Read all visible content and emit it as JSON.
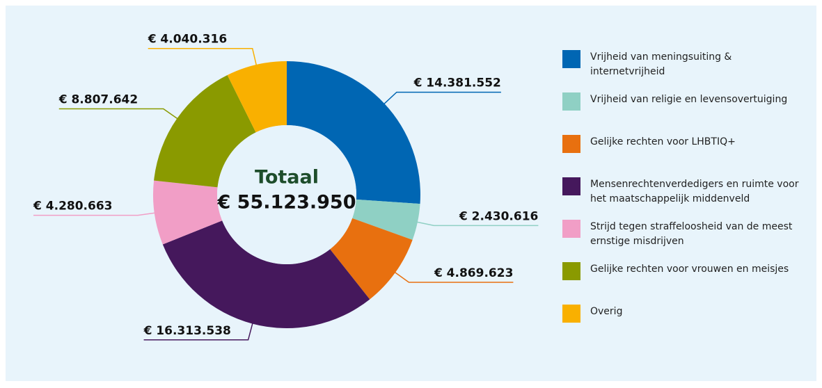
{
  "chart_data": {
    "type": "donut",
    "categories": [
      "Vrijheid van meningsuiting & internetvrijheid",
      "Vrijheid van religie en levensovertuiging",
      "Gelijke rechten voor LHBTIQ+",
      "Mensenrechtenverdedigers en ruimte voor het maatschappelijk middenveld",
      "Strijd tegen straffeloosheid van de meest ernstige misdrijven",
      "Gelijke rechten voor vrouwen en meisjes",
      "Overig"
    ],
    "values": [
      14381552,
      2430616,
      4869623,
      16313538,
      4280663,
      8807642,
      4040316
    ],
    "value_labels": [
      "€ 14.381.552",
      "€ 2.430.616",
      "€ 4.869.623",
      "€ 16.313.538",
      "€ 4.280.663",
      "€ 8.807.642",
      "€ 4.040.316"
    ],
    "colors": [
      "#0066b3",
      "#8fd0c4",
      "#e8700f",
      "#45185c",
      "#f19ec6",
      "#8a9a00",
      "#f9b000"
    ],
    "center_label": "Totaal",
    "total": 55123950,
    "total_label": "€ 55.123.950"
  }
}
